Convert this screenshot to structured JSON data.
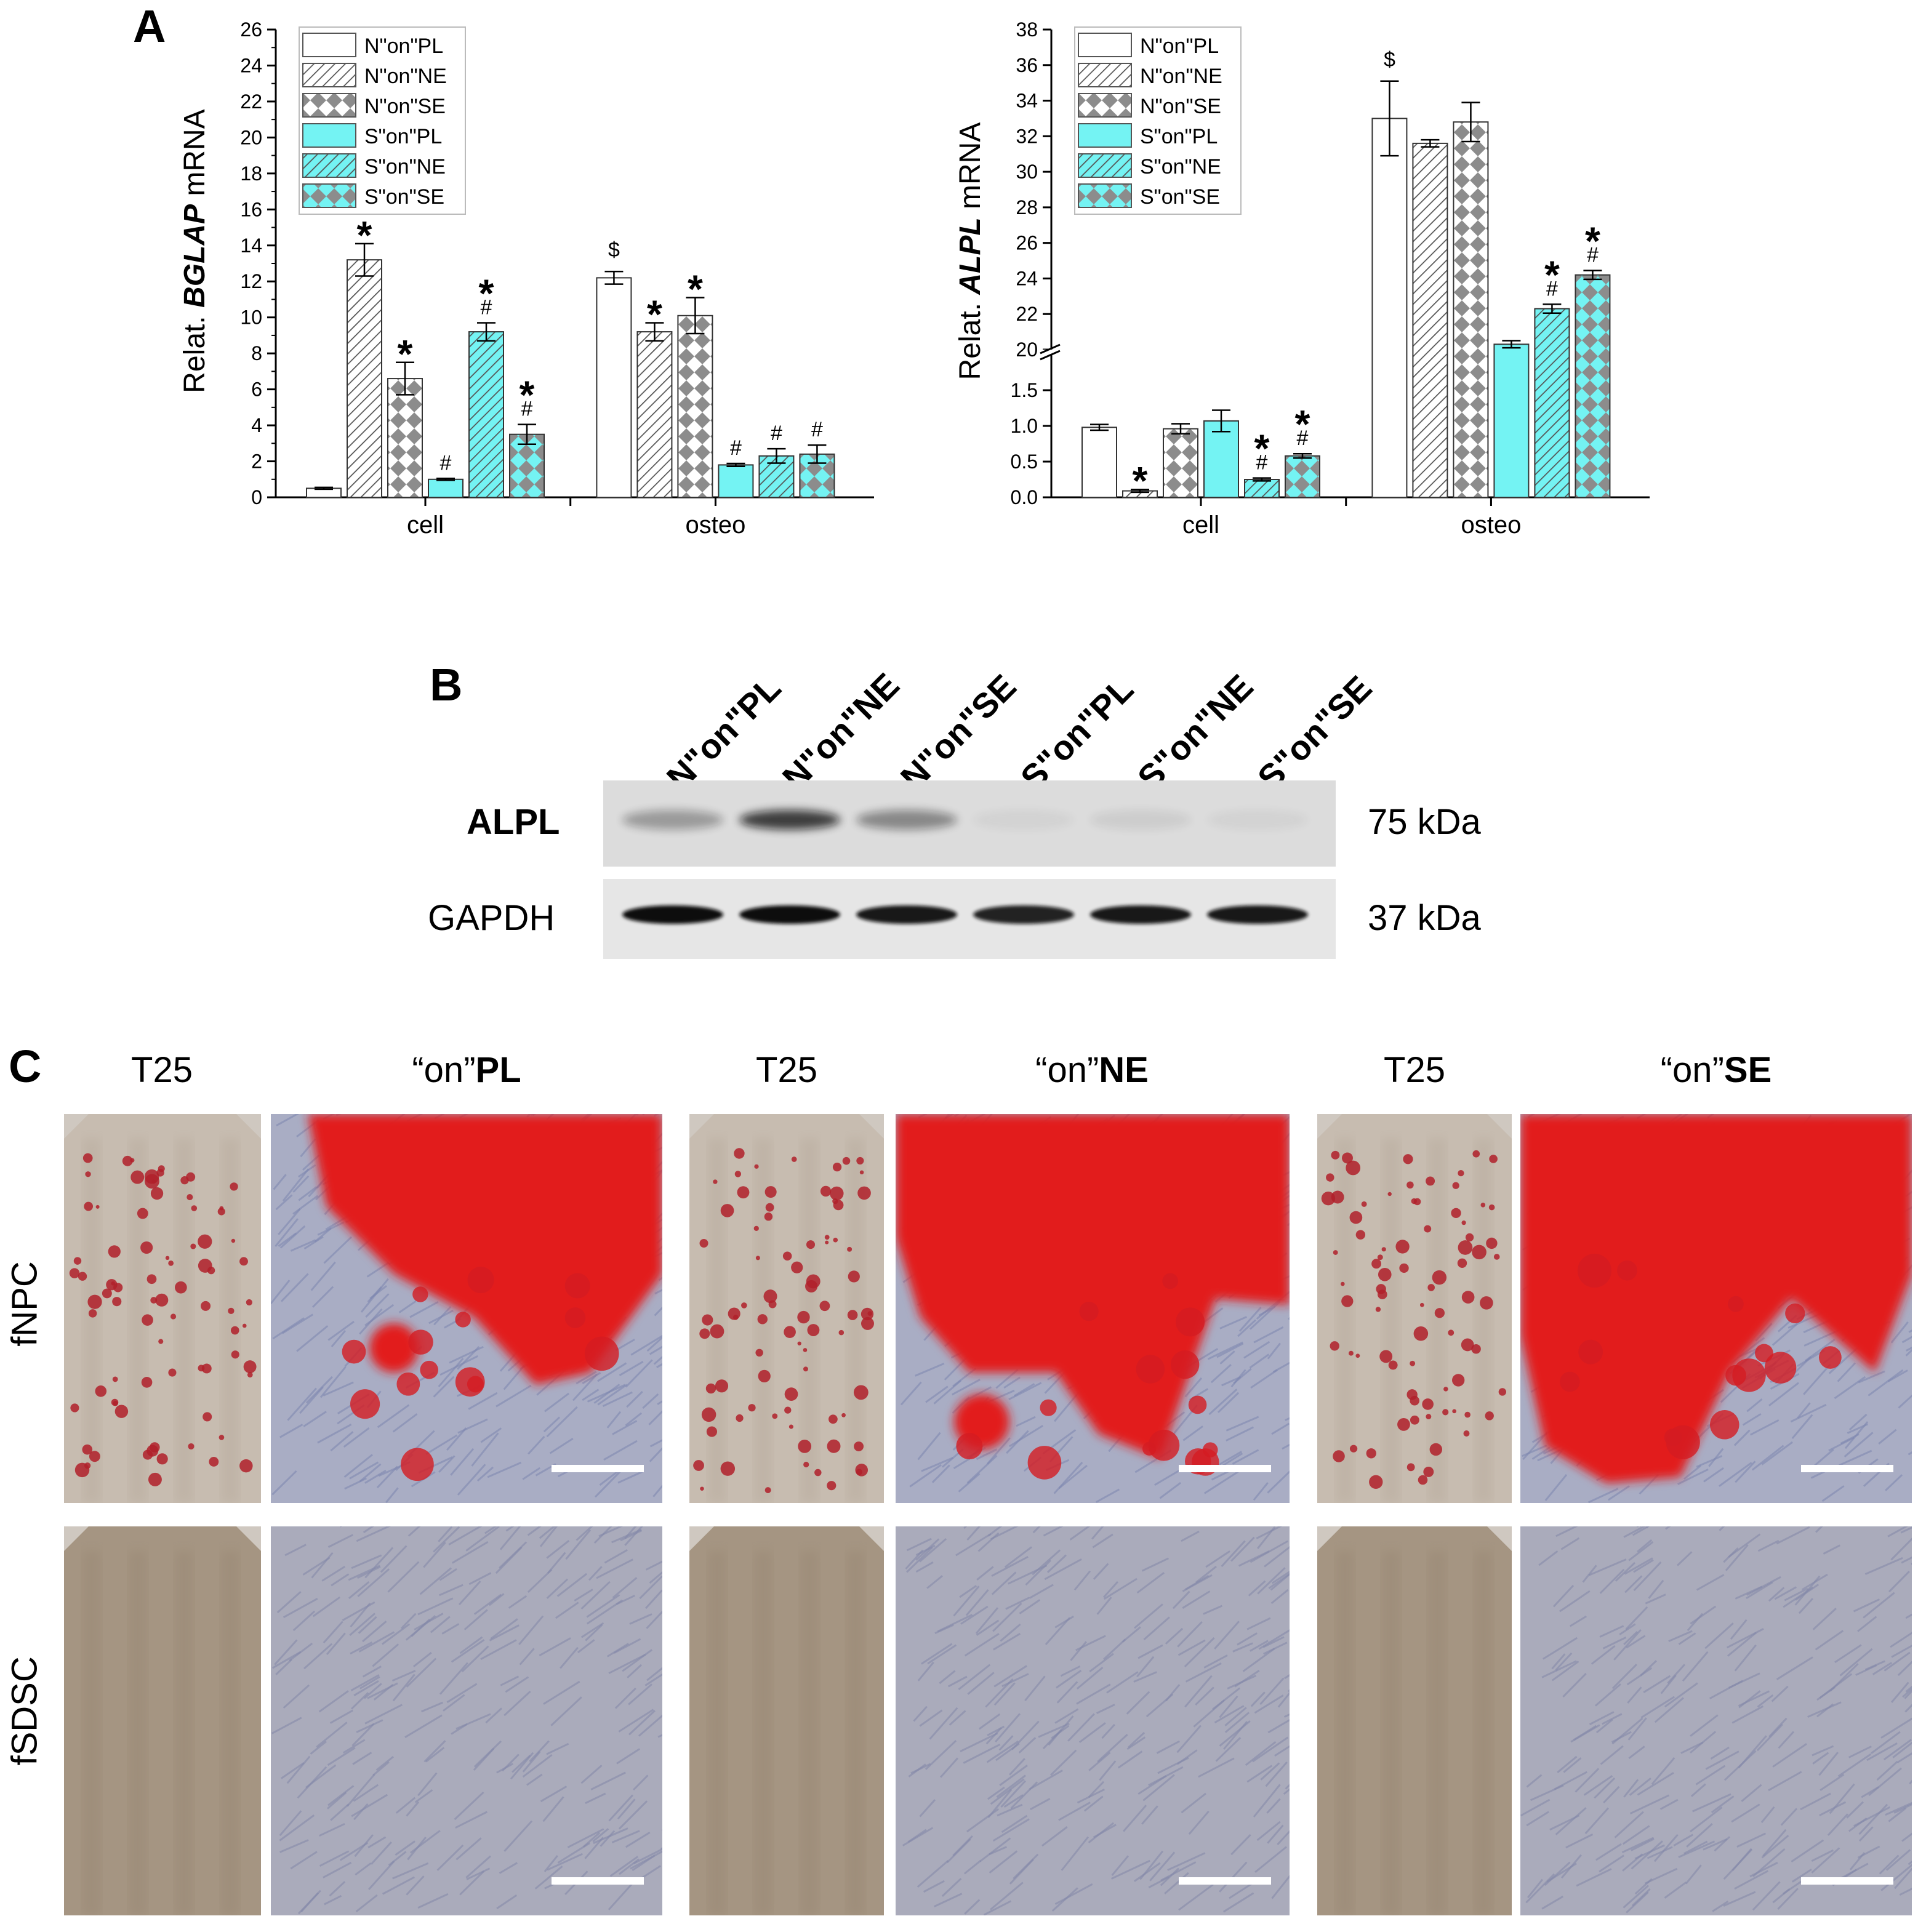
{
  "panels": {
    "a": "A",
    "b": "B",
    "c": "C"
  },
  "colors": {
    "white_fill": "#ffffff",
    "cyan_fill": "#74f3f3",
    "gray_pattern": "#8c8c8c",
    "alizarin_red": "#e21b1b",
    "cell_blue": "#7d86b0",
    "flask_tan": "#a59582"
  },
  "legend_entries": [
    "N\"on\"PL",
    "N\"on\"NE",
    "N\"on\"SE",
    "S\"on\"PL",
    "S\"on\"NE",
    "S\"on\"SE"
  ],
  "legend_patterns": [
    "plain",
    "hatch",
    "checker",
    "plain",
    "hatch",
    "checker"
  ],
  "legend_colors": [
    "white",
    "white",
    "white",
    "cyan",
    "cyan",
    "cyan"
  ],
  "chart_data": [
    {
      "type": "bar",
      "ylabel_prefix": "Relat. ",
      "ylabel_gene": "BGLAP",
      "ylabel_suffix": " mRNA",
      "categories": [
        "cell",
        "osteo"
      ],
      "ylim": [
        0,
        26
      ],
      "yticks": [
        "0",
        "2",
        "4",
        "6",
        "8",
        "10",
        "12",
        "14",
        "16",
        "18",
        "20",
        "22",
        "24",
        "26"
      ],
      "series": [
        {
          "name": "N\"on\"PL",
          "values": [
            0.5,
            12.2
          ],
          "errors": [
            0.05,
            0.35
          ],
          "marks": [
            "",
            "$"
          ]
        },
        {
          "name": "N\"on\"NE",
          "values": [
            13.2,
            9.2
          ],
          "errors": [
            0.9,
            0.5
          ],
          "marks": [
            "*",
            "*"
          ]
        },
        {
          "name": "N\"on\"SE",
          "values": [
            6.6,
            10.1
          ],
          "errors": [
            0.9,
            1.0
          ],
          "marks": [
            "*",
            "*"
          ]
        },
        {
          "name": "S\"on\"PL",
          "values": [
            1.0,
            1.8
          ],
          "errors": [
            0.05,
            0.08
          ],
          "marks": [
            "#",
            "#"
          ]
        },
        {
          "name": "S\"on\"NE",
          "values": [
            9.2,
            2.3
          ],
          "errors": [
            0.5,
            0.4
          ],
          "marks": [
            "*#",
            "#"
          ]
        },
        {
          "name": "S\"on\"SE",
          "values": [
            3.5,
            2.4
          ],
          "errors": [
            0.55,
            0.5
          ],
          "marks": [
            "*#",
            "#"
          ]
        }
      ]
    },
    {
      "type": "bar",
      "ylabel_prefix": "Relat. ",
      "ylabel_gene": "ALPL",
      "ylabel_suffix": " mRNA",
      "categories": [
        "cell",
        "osteo"
      ],
      "axis_break": true,
      "ylim_lower": [
        0,
        2
      ],
      "ylim_upper": [
        20,
        38
      ],
      "yticks_lower": [
        "0.0",
        "0.5",
        "1.0",
        "1.5"
      ],
      "yticks_upper": [
        "20",
        "22",
        "24",
        "26",
        "28",
        "30",
        "32",
        "34",
        "36",
        "38"
      ],
      "series": [
        {
          "name": "N\"on\"PL",
          "values": [
            0.98,
            33.0
          ],
          "errors": [
            0.04,
            2.1
          ],
          "marks": [
            "",
            "$"
          ]
        },
        {
          "name": "N\"on\"NE",
          "values": [
            0.09,
            31.6
          ],
          "errors": [
            0.02,
            0.2
          ],
          "marks": [
            "*",
            ""
          ]
        },
        {
          "name": "N\"on\"SE",
          "values": [
            0.96,
            32.8
          ],
          "errors": [
            0.07,
            1.1
          ],
          "marks": [
            "",
            ""
          ]
        },
        {
          "name": "S\"on\"PL",
          "values": [
            1.07,
            20.3
          ],
          "errors": [
            0.15,
            0.2
          ],
          "marks": [
            "",
            ""
          ]
        },
        {
          "name": "S\"on\"NE",
          "values": [
            0.25,
            22.3
          ],
          "errors": [
            0.02,
            0.25
          ],
          "marks": [
            "*#",
            "*#"
          ]
        },
        {
          "name": "S\"on\"SE",
          "values": [
            0.58,
            24.2
          ],
          "errors": [
            0.03,
            0.25
          ],
          "marks": [
            "*#",
            "*#"
          ]
        }
      ]
    }
  ],
  "western_blot": {
    "lanes": [
      "N\"on\"PL",
      "N\"on\"NE",
      "N\"on\"SE",
      "S\"on\"PL",
      "S\"on\"NE",
      "S\"on\"SE"
    ],
    "rows": [
      {
        "protein": "ALPL",
        "size": "75 kDa",
        "intensity": [
          0.35,
          0.85,
          0.45,
          0.05,
          0.08,
          0.05
        ]
      },
      {
        "protein": "GAPDH",
        "size": "37 kDa",
        "intensity": [
          1.0,
          1.0,
          0.95,
          0.9,
          0.95,
          0.95
        ]
      }
    ]
  },
  "staining": {
    "column_headers": [
      {
        "plain": "T25",
        "bold": ""
      },
      {
        "plain": "“on”",
        "bold": "PL"
      },
      {
        "plain": "T25",
        "bold": ""
      },
      {
        "plain": "“on”",
        "bold": "NE"
      },
      {
        "plain": "T25",
        "bold": ""
      },
      {
        "plain": "“on”",
        "bold": "SE"
      }
    ],
    "row_headers": [
      "fNPC",
      "fSDSC"
    ],
    "mineralized": [
      true,
      false
    ]
  }
}
